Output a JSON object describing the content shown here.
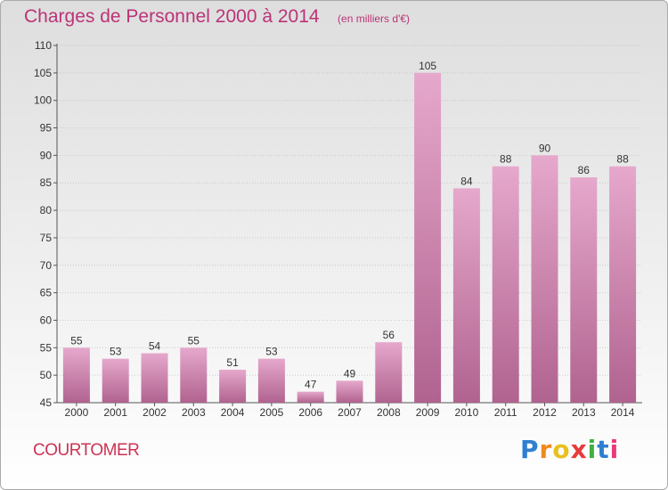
{
  "header": {
    "title": "Charges de Personnel 2000 à 2014",
    "subtitle": "(en milliers d'€)"
  },
  "commune_name": "COURTOMER",
  "logo": {
    "text": "Proxiti",
    "letter_colors": [
      "#2f7fd0",
      "#f08a1e",
      "#e8c020",
      "#e83a3a",
      "#40b040",
      "#2f7fd0",
      "#e83a7a"
    ]
  },
  "colors": {
    "bar_top": "#e6a8cc",
    "bar_bottom": "#b0638f",
    "title": "#bb3377"
  },
  "chart_data": {
    "type": "bar",
    "categories": [
      "2000",
      "2001",
      "2002",
      "2003",
      "2004",
      "2005",
      "2006",
      "2007",
      "2008",
      "2009",
      "2010",
      "2011",
      "2012",
      "2013",
      "2014"
    ],
    "values": [
      55,
      53,
      54,
      55,
      51,
      53,
      47,
      49,
      56,
      105,
      84,
      88,
      90,
      86,
      88
    ],
    "ylim": [
      45,
      110
    ],
    "yticks": [
      45,
      50,
      55,
      60,
      65,
      70,
      75,
      80,
      85,
      90,
      95,
      100,
      105,
      110
    ],
    "grid": true,
    "data_labels": true
  }
}
